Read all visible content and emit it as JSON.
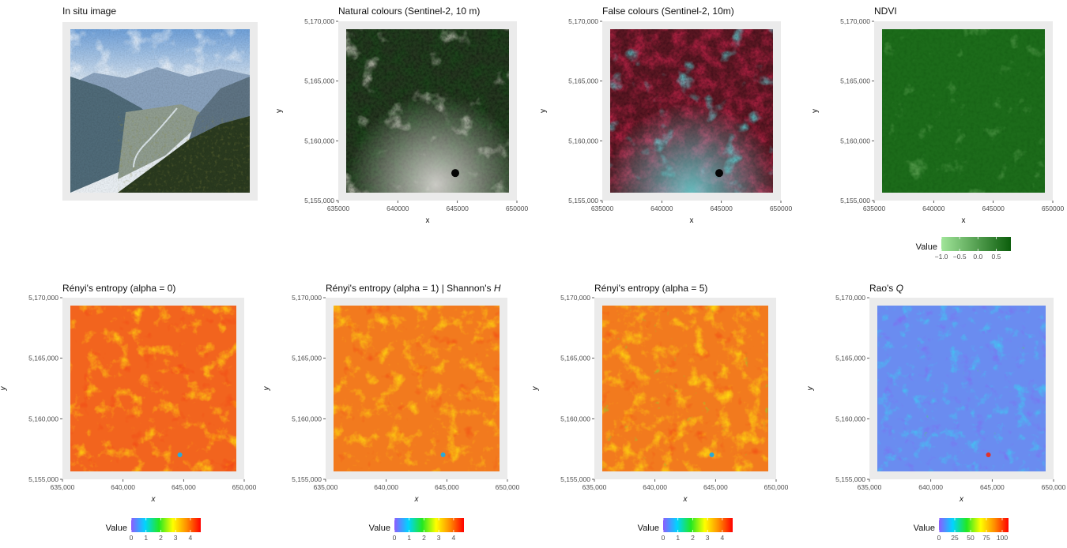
{
  "panels": [
    {
      "id": "insitu",
      "title": "In situ image",
      "kind": "photo"
    },
    {
      "id": "natural",
      "title": "Natural colours (Sentinel-2, 10 m)",
      "kind": "natural",
      "xlabel": "x",
      "ylabel": "y",
      "xticks": [
        "635000",
        "640000",
        "645000",
        "650000"
      ],
      "yticks": [
        "5,155,000",
        "5,160,000",
        "5,165,000",
        "5,170,000"
      ]
    },
    {
      "id": "false",
      "title": "False colours (Sentinel-2, 10m)",
      "kind": "false",
      "xlabel": "x",
      "ylabel": "y",
      "xticks": [
        "635000",
        "640000",
        "645000",
        "650000"
      ],
      "yticks": [
        "5,155,000",
        "5,160,000",
        "5,165,000",
        "5,170,000"
      ]
    },
    {
      "id": "ndvi",
      "title": "NDVI",
      "kind": "ndvi",
      "xlabel": "x",
      "ylabel": "y",
      "xticks": [
        "635000",
        "640000",
        "645000",
        "650000"
      ],
      "yticks": [
        "5,155,000",
        "5,160,000",
        "5,165,000",
        "5,170,000"
      ],
      "legend": {
        "label": "Value",
        "ticks": [
          "−1.0",
          "−0.5",
          "0.0",
          "0.5"
        ],
        "min": -1.0,
        "max": 0.9,
        "values": [
          -1.0,
          -0.5,
          0.0,
          0.5
        ],
        "colors": [
          "#a1e59a",
          "#0b5d0b"
        ]
      }
    },
    {
      "id": "renyi0",
      "title": "Rényi's entropy (alpha = 0)",
      "kind": "renyi0",
      "xlabel": "x",
      "ylabel": "y",
      "xticks": [
        "635,000",
        "640,000",
        "645,000",
        "650,000"
      ],
      "yticks": [
        "5,155,000",
        "5,160,000",
        "5,165,000",
        "5,170,000"
      ],
      "legend": {
        "label": "Value",
        "ticks": [
          "0",
          "1",
          "2",
          "3",
          "4"
        ],
        "min": 0,
        "max": 4.7,
        "values": [
          0,
          1,
          2,
          3,
          4
        ],
        "colors": [
          "#8c5cff",
          "#00d4ff",
          "#22e822",
          "#ffff00",
          "#ff8c00",
          "#ff0000"
        ]
      }
    },
    {
      "id": "renyi1",
      "title": "Rényi's entropy (alpha = 1) | Shannon's ",
      "title_italic": "H",
      "kind": "renyi1",
      "xlabel": "x",
      "ylabel": "y",
      "xticks": [
        "635,000",
        "640,000",
        "645,000",
        "650,000"
      ],
      "yticks": [
        "5,155,000",
        "5,160,000",
        "5,165,000",
        "5,170,000"
      ],
      "legend": {
        "label": "Value",
        "ticks": [
          "0",
          "1",
          "2",
          "3",
          "4"
        ],
        "min": 0,
        "max": 4.7,
        "values": [
          0,
          1,
          2,
          3,
          4
        ],
        "colors": [
          "#8c5cff",
          "#00d4ff",
          "#22e822",
          "#ffff00",
          "#ff8c00",
          "#ff0000"
        ]
      }
    },
    {
      "id": "renyi5",
      "title": "Rényi's entropy (alpha = 5)",
      "kind": "renyi5",
      "xlabel": "x",
      "ylabel": "y",
      "xticks": [
        "635,000",
        "640,000",
        "645,000",
        "650,000"
      ],
      "yticks": [
        "5,155,000",
        "5,160,000",
        "5,165,000",
        "5,170,000"
      ],
      "legend": {
        "label": "Value",
        "ticks": [
          "0",
          "1",
          "2",
          "3",
          "4"
        ],
        "min": 0,
        "max": 4.7,
        "values": [
          0,
          1,
          2,
          3,
          4
        ],
        "colors": [
          "#8c5cff",
          "#00d4ff",
          "#22e822",
          "#ffff00",
          "#ff8c00",
          "#ff0000"
        ]
      }
    },
    {
      "id": "rao",
      "title": "Rao's ",
      "title_italic": "Q",
      "kind": "rao",
      "xlabel": "x",
      "ylabel": "y",
      "xticks": [
        "635,000",
        "640,000",
        "645,000",
        "650,000"
      ],
      "yticks": [
        "5,155,000",
        "5,160,000",
        "5,165,000",
        "5,170,000"
      ],
      "legend": {
        "label": "Value",
        "ticks": [
          "0",
          "25",
          "50",
          "75",
          "100"
        ],
        "min": 0,
        "max": 110,
        "values": [
          0,
          25,
          50,
          75,
          100
        ],
        "colors": [
          "#8c5cff",
          "#00d4ff",
          "#22e822",
          "#ffff00",
          "#ff8c00",
          "#ff0000"
        ]
      }
    }
  ],
  "chart_data": [
    {
      "type": "heatmap",
      "title": "Natural colours (Sentinel-2, 10 m)",
      "xlabel": "x",
      "ylabel": "y",
      "xlim": [
        635000,
        650000
      ],
      "ylim": [
        5155000,
        5170000
      ]
    },
    {
      "type": "heatmap",
      "title": "False colours (Sentinel-2, 10m)",
      "xlabel": "x",
      "ylabel": "y",
      "xlim": [
        635000,
        650000
      ],
      "ylim": [
        5155000,
        5170000
      ]
    },
    {
      "type": "heatmap",
      "title": "NDVI",
      "xlabel": "x",
      "ylabel": "y",
      "xlim": [
        635000,
        650000
      ],
      "ylim": [
        5155000,
        5170000
      ],
      "legend_range": [
        -1.0,
        0.9
      ]
    },
    {
      "type": "heatmap",
      "title": "Rényi's entropy (alpha = 0)",
      "xlabel": "x",
      "ylabel": "y",
      "xlim": [
        635000,
        650000
      ],
      "ylim": [
        5155000,
        5170000
      ],
      "legend_range": [
        0,
        4.7
      ]
    },
    {
      "type": "heatmap",
      "title": "Rényi's entropy (alpha = 1) | Shannon's H",
      "xlabel": "x",
      "ylabel": "y",
      "xlim": [
        635000,
        650000
      ],
      "ylim": [
        5155000,
        5170000
      ],
      "legend_range": [
        0,
        4.7
      ]
    },
    {
      "type": "heatmap",
      "title": "Rényi's entropy (alpha = 5)",
      "xlabel": "x",
      "ylabel": "y",
      "xlim": [
        635000,
        650000
      ],
      "ylim": [
        5155000,
        5170000
      ],
      "legend_range": [
        0,
        4.7
      ]
    },
    {
      "type": "heatmap",
      "title": "Rao's Q",
      "xlabel": "x",
      "ylabel": "y",
      "xlim": [
        635000,
        650000
      ],
      "ylim": [
        5155000,
        5170000
      ],
      "legend_range": [
        0,
        110
      ]
    }
  ]
}
